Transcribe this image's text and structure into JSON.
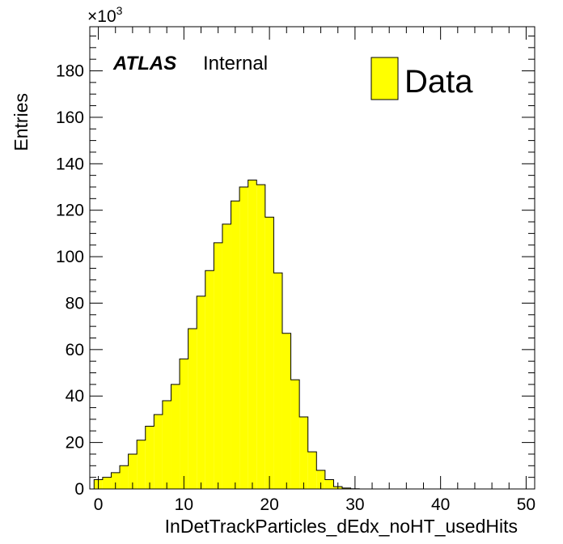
{
  "chart_data": {
    "type": "bar",
    "xlabel": "InDetTrackParticles_dEdx_noHT_usedHits",
    "ylabel": "Entries",
    "y_multiplier_label": "×10",
    "y_multiplier_exponent": "3",
    "xlim": [
      -1,
      51
    ],
    "ylim": [
      0,
      199
    ],
    "x_ticks": [
      0,
      10,
      20,
      30,
      40,
      50
    ],
    "y_ticks": [
      0,
      20,
      40,
      60,
      80,
      100,
      120,
      140,
      160,
      180
    ],
    "bin_width": 1,
    "bins_start": -0.5,
    "values": [
      4,
      5,
      7,
      10,
      15,
      21,
      27,
      32,
      38,
      45,
      56,
      69,
      83,
      94,
      106,
      114,
      124,
      130,
      133,
      131,
      117,
      93,
      67,
      47,
      31,
      16,
      8,
      4,
      1,
      0.4,
      0.1
    ],
    "series": [
      {
        "name": "Data",
        "color": "#ffff00"
      }
    ],
    "legend_position": "top-right",
    "annotation": {
      "atlas": "ATLAS",
      "label": "Internal"
    },
    "grid": false
  }
}
